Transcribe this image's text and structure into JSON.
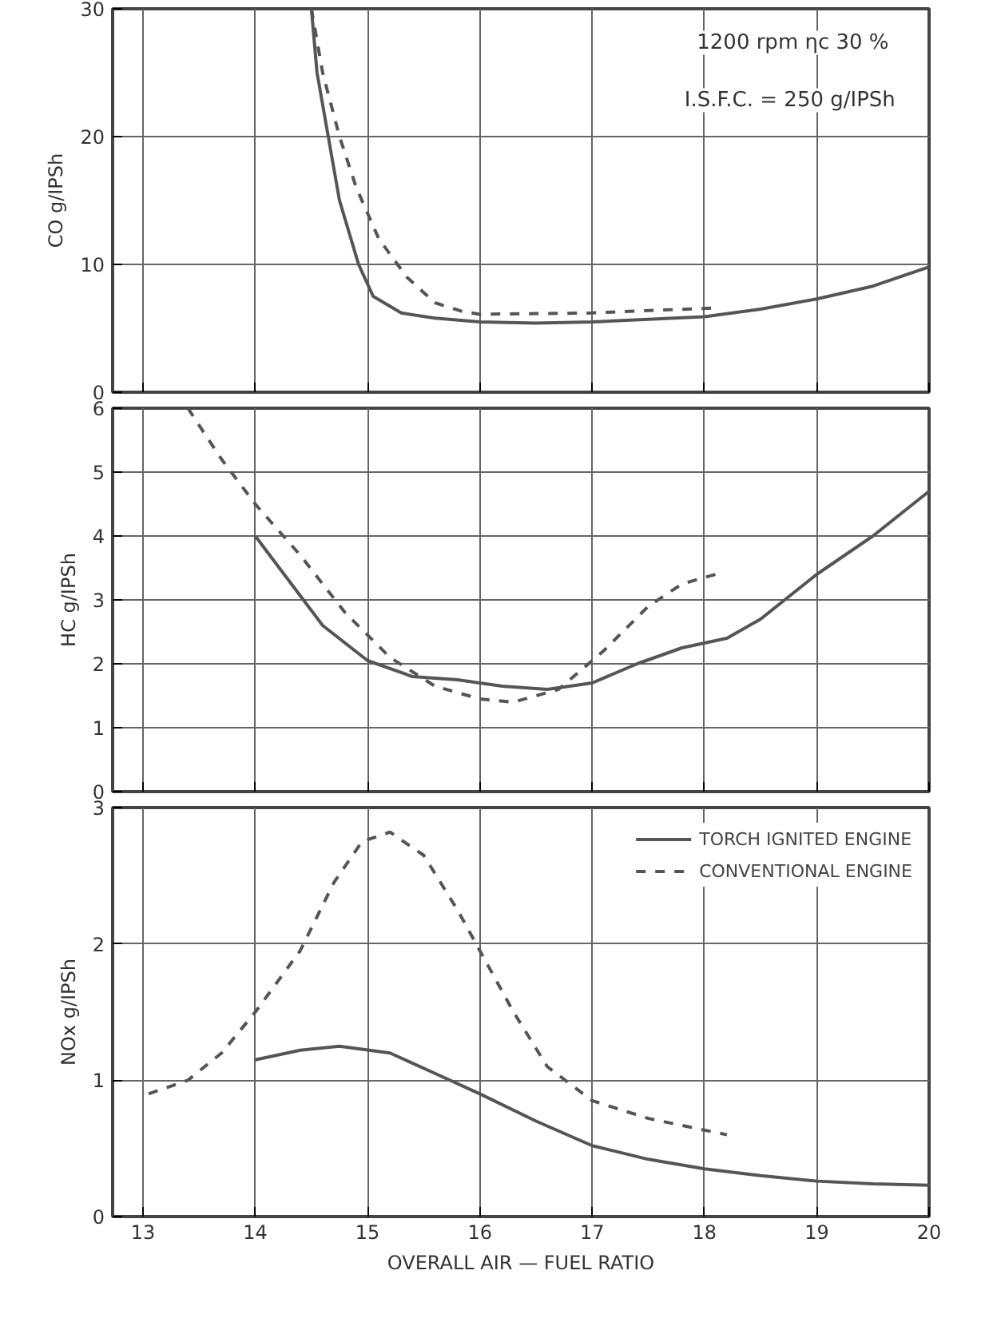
{
  "chart_data": [
    {
      "type": "line",
      "ylabel": "CO g/IPSh",
      "xlim": [
        12.73,
        20
      ],
      "xticks": [
        13,
        14,
        15,
        16,
        17,
        18,
        19,
        20
      ],
      "ylim": [
        0,
        30
      ],
      "yticks": [
        0,
        10,
        20,
        30
      ],
      "tick_labels": "y",
      "grid": true,
      "legend": false,
      "annotations": [
        "1200 rpm  ηc 30 %",
        "I.S.F.C. = 250 g/IPSh"
      ],
      "series": [
        {
          "color": "#555555",
          "line_style": "solid",
          "x": [
            14.5,
            14.55,
            14.65,
            14.75,
            14.92,
            15.05,
            15.3,
            15.6,
            16,
            16.5,
            17,
            17.5,
            18,
            18.5,
            19,
            19.5,
            20
          ],
          "values": [
            30,
            25,
            20,
            15,
            10,
            7.5,
            6.2,
            5.8,
            5.5,
            5.4,
            5.5,
            5.7,
            5.9,
            6.5,
            7.3,
            8.3,
            9.8
          ]
        },
        {
          "color": "#555555",
          "line_style": "dashed",
          "x": [
            14.5,
            14.6,
            14.75,
            14.9,
            15.1,
            15.35,
            15.6,
            15.85,
            16,
            17,
            18.1
          ],
          "values": [
            30,
            25,
            20,
            16,
            12,
            9,
            7,
            6.3,
            6.1,
            6.2,
            6.6
          ]
        }
      ]
    },
    {
      "type": "line",
      "ylabel": "HC g/IPSh",
      "xlim": [
        12.73,
        20
      ],
      "xticks": [
        13,
        14,
        15,
        16,
        17,
        18,
        19,
        20
      ],
      "ylim": [
        0,
        6
      ],
      "yticks": [
        0,
        1,
        2,
        3,
        4,
        5,
        6
      ],
      "tick_labels": "y",
      "grid": true,
      "legend": false,
      "series": [
        {
          "color": "#555555",
          "line_style": "solid",
          "x": [
            14,
            14.3,
            14.6,
            15,
            15.4,
            15.8,
            16.2,
            16.6,
            17,
            17.4,
            17.8,
            18.2,
            18.5,
            19,
            19.5,
            20
          ],
          "values": [
            4.0,
            3.3,
            2.6,
            2.05,
            1.8,
            1.75,
            1.65,
            1.6,
            1.7,
            2.0,
            2.25,
            2.4,
            2.7,
            3.4,
            4.0,
            4.7
          ]
        },
        {
          "color": "#555555",
          "line_style": "dashed",
          "x": [
            13.4,
            13.7,
            14,
            14.4,
            14.8,
            15.2,
            15.6,
            16,
            16.3,
            16.7,
            17.1,
            17.5,
            17.8,
            18.1
          ],
          "values": [
            6,
            5.2,
            4.5,
            3.7,
            2.8,
            2.1,
            1.65,
            1.45,
            1.4,
            1.6,
            2.2,
            2.9,
            3.25,
            3.4
          ]
        }
      ]
    },
    {
      "type": "line",
      "ylabel": "NOx g/IPSh",
      "xlabel": "OVERALL AIR — FUEL RATIO",
      "xlim": [
        12.73,
        20
      ],
      "xticks": [
        13,
        14,
        15,
        16,
        17,
        18,
        19,
        20
      ],
      "ylim": [
        0,
        3
      ],
      "yticks": [
        0,
        1,
        2,
        3
      ],
      "grid": true,
      "legend": "top right",
      "series": [
        {
          "name": "TORCH IGNITED ENGINE",
          "color": "#555555",
          "line_style": "solid",
          "x": [
            14,
            14.4,
            14.75,
            15.2,
            15.6,
            16,
            16.5,
            17,
            17.5,
            18,
            18.5,
            19,
            19.5,
            20
          ],
          "values": [
            1.15,
            1.22,
            1.25,
            1.2,
            1.05,
            0.9,
            0.7,
            0.52,
            0.42,
            0.35,
            0.3,
            0.26,
            0.24,
            0.23
          ]
        },
        {
          "name": "CONVENTIONAL ENGINE",
          "color": "#555555",
          "line_style": "dashed",
          "x": [
            13.05,
            13.4,
            13.7,
            14,
            14.4,
            14.7,
            14.95,
            15.2,
            15.5,
            15.8,
            16,
            16.3,
            16.6,
            17,
            17.5,
            18.2
          ],
          "values": [
            0.9,
            1.0,
            1.2,
            1.5,
            1.95,
            2.45,
            2.75,
            2.82,
            2.65,
            2.25,
            1.95,
            1.5,
            1.1,
            0.85,
            0.72,
            0.6
          ]
        }
      ]
    }
  ]
}
